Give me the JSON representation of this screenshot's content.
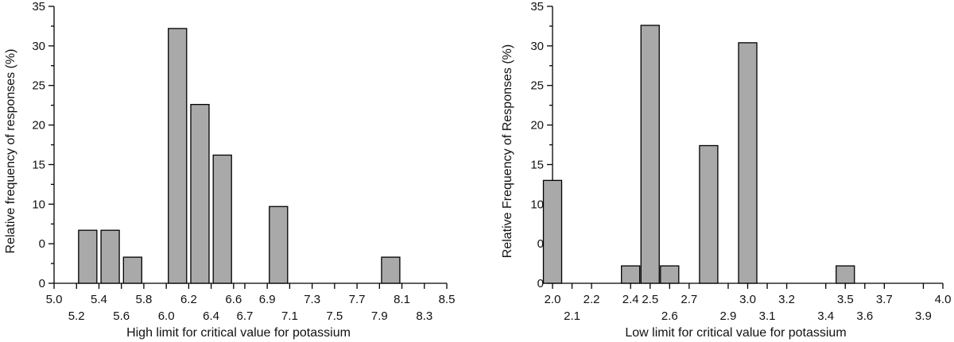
{
  "chart_data": [
    {
      "type": "bar",
      "xlabel": "High limit for critical value for potassium",
      "ylabel": "Relative frequency of responses (%)",
      "ylim": [
        0,
        35
      ],
      "y_ticks": [
        "0",
        "0",
        "10",
        "15",
        "20",
        "25",
        "30",
        "35"
      ],
      "x_ticks_upper": [
        "5.0",
        "5.4",
        "5.8",
        "6.2",
        "6.6",
        "6.9",
        "7.3",
        "7.7",
        "8.1",
        "8.5"
      ],
      "x_ticks_lower": [
        "5.2",
        "5.6",
        "6.0",
        "6.4",
        "6.7",
        "7.1",
        "7.5",
        "7.9",
        "8.3"
      ],
      "categories": [
        "5.3",
        "5.5",
        "5.7",
        "6.1",
        "6.3",
        "6.5",
        "7.0",
        "8.0"
      ],
      "values": [
        6.7,
        6.7,
        3.3,
        32.2,
        22.6,
        16.2,
        9.7,
        3.3
      ],
      "grid": false
    },
    {
      "type": "bar",
      "xlabel": "Low limit for critical value for potassium",
      "ylabel": "Relative Frequency of Responses (%)",
      "ylim": [
        0,
        35
      ],
      "y_ticks": [
        "0",
        "0",
        "10",
        "15",
        "20",
        "25",
        "30",
        "35"
      ],
      "x_ticks_upper": [
        "2.0",
        "2.2",
        "2.4",
        "2.5",
        "2.7",
        "3.0",
        "3.2",
        "3.5",
        "3.7",
        "4.0"
      ],
      "x_ticks_lower": [
        "2.1",
        "2.6",
        "2.9",
        "3.1",
        "3.4",
        "3.6",
        "3.9"
      ],
      "categories": [
        "2.0",
        "2.4",
        "2.5",
        "2.6",
        "2.8",
        "3.0",
        "3.5"
      ],
      "values": [
        13.0,
        2.2,
        32.6,
        2.2,
        17.4,
        30.4,
        2.2
      ],
      "grid": false
    }
  ]
}
